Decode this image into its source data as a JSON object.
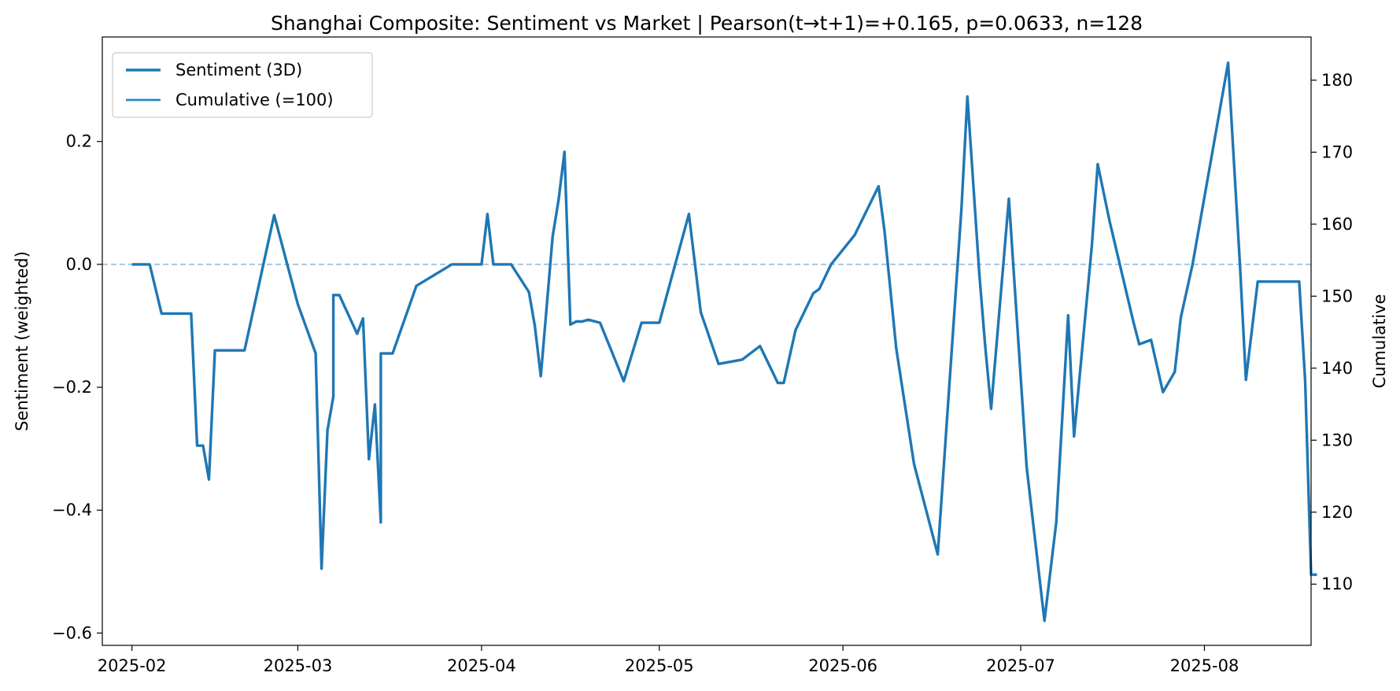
{
  "chart_data": {
    "type": "line",
    "title": "Shanghai Composite: Sentiment vs Market | Pearson(t→t+1)=+0.165, p=0.0633, n=128",
    "ylabel_left": "Sentiment (weighted)",
    "ylabel_right": "Cumulative",
    "xlim": [
      "2025-01-27",
      "2025-08-19"
    ],
    "ylim_left": [
      -0.62,
      0.37
    ],
    "ylim_right": [
      101.5,
      186
    ],
    "x_ticks": [
      "2025-02-01",
      "2025-03-01",
      "2025-04-01",
      "2025-05-01",
      "2025-06-01",
      "2025-07-01",
      "2025-08-01"
    ],
    "x_tick_labels": [
      "2025-02",
      "2025-03",
      "2025-04",
      "2025-05",
      "2025-06",
      "2025-07",
      "2025-08"
    ],
    "y_ticks_left": [
      -0.6,
      -0.4,
      -0.2,
      0.0,
      0.2
    ],
    "y_tick_labels_left": [
      "−0.6",
      "−0.4",
      "−0.2",
      "0.0",
      "0.2"
    ],
    "y_ticks_right": [
      110,
      120,
      130,
      140,
      150,
      160,
      170,
      180
    ],
    "y_tick_labels_right": [
      "110",
      "120",
      "130",
      "140",
      "150",
      "160",
      "170",
      "180"
    ],
    "reference_line": {
      "y": 0.0,
      "style": "dashed"
    },
    "grid": false,
    "legend": {
      "placement": "top-left",
      "entries": [
        "Sentiment (3D)",
        "Cumulative (=100)"
      ]
    },
    "colors": {
      "sentiment": "#1f77b4",
      "cumulative": "#2e86c1",
      "reference": "#8fb8de"
    },
    "series": [
      {
        "name": "Sentiment (3D)",
        "axis": "left",
        "x": [
          "2025-02-01",
          "2025-02-03",
          "2025-02-04",
          "2025-02-06",
          "2025-02-11",
          "2025-02-12",
          "2025-02-13",
          "2025-02-14",
          "2025-02-15",
          "2025-02-20",
          "2025-02-25",
          "2025-03-01",
          "2025-03-04",
          "2025-03-05",
          "2025-03-06",
          "2025-03-07",
          "2025-03-07",
          "2025-03-08",
          "2025-03-11",
          "2025-03-12",
          "2025-03-13",
          "2025-03-14",
          "2025-03-15",
          "2025-03-15",
          "2025-03-17",
          "2025-03-21",
          "2025-03-27",
          "2025-04-01",
          "2025-04-02",
          "2025-04-03",
          "2025-04-04",
          "2025-04-06",
          "2025-04-09",
          "2025-04-10",
          "2025-04-11",
          "2025-04-13",
          "2025-04-14",
          "2025-04-15",
          "2025-04-16",
          "2025-04-17",
          "2025-04-18",
          "2025-04-19",
          "2025-04-21",
          "2025-04-25",
          "2025-04-28",
          "2025-05-01",
          "2025-05-06",
          "2025-05-08",
          "2025-05-11",
          "2025-05-15",
          "2025-05-18",
          "2025-05-21",
          "2025-05-22",
          "2025-05-24",
          "2025-05-27",
          "2025-05-28",
          "2025-05-30",
          "2025-06-03",
          "2025-06-07",
          "2025-06-08",
          "2025-06-10",
          "2025-06-13",
          "2025-06-17",
          "2025-06-21",
          "2025-06-22",
          "2025-06-24",
          "2025-06-25",
          "2025-06-26",
          "2025-06-29",
          "2025-07-02",
          "2025-07-05",
          "2025-07-07",
          "2025-07-09",
          "2025-07-10",
          "2025-07-13",
          "2025-07-14",
          "2025-07-16",
          "2025-07-20",
          "2025-07-21",
          "2025-07-23",
          "2025-07-25",
          "2025-07-27",
          "2025-07-28",
          "2025-07-30",
          "2025-08-05",
          "2025-08-07",
          "2025-08-08",
          "2025-08-10",
          "2025-08-13",
          "2025-08-17",
          "2025-08-18",
          "2025-08-19",
          "2025-08-20"
        ],
        "y": [
          0.0,
          0.0,
          0.0,
          -0.08,
          -0.08,
          -0.295,
          -0.295,
          -0.35,
          -0.14,
          -0.14,
          0.08,
          -0.065,
          -0.145,
          -0.495,
          -0.27,
          -0.215,
          -0.05,
          -0.05,
          -0.113,
          -0.088,
          -0.317,
          -0.228,
          -0.42,
          -0.145,
          -0.145,
          -0.035,
          0.0,
          0.0,
          0.082,
          0.0,
          0.0,
          0.0,
          -0.045,
          -0.1,
          -0.182,
          0.045,
          0.105,
          0.183,
          -0.098,
          -0.093,
          -0.093,
          -0.09,
          -0.095,
          -0.19,
          -0.095,
          -0.095,
          0.082,
          -0.078,
          -0.162,
          -0.155,
          -0.133,
          -0.193,
          -0.193,
          -0.107,
          -0.047,
          -0.04,
          0.0,
          0.048,
          0.127,
          0.055,
          -0.137,
          -0.325,
          -0.472,
          0.092,
          0.273,
          -0.015,
          -0.133,
          -0.235,
          0.107,
          -0.33,
          -0.58,
          -0.42,
          -0.083,
          -0.28,
          0.03,
          0.163,
          0.07,
          -0.093,
          -0.13,
          -0.123,
          -0.208,
          -0.175,
          -0.087,
          0.0,
          0.328,
          0.0,
          -0.188,
          -0.028,
          -0.028,
          -0.028,
          -0.19,
          -0.505,
          -0.505
        ],
        "note_x_inferred_from_axis": true
      },
      {
        "name": "Cumulative (=100)",
        "axis": "right",
        "x": [],
        "y": []
      }
    ]
  }
}
